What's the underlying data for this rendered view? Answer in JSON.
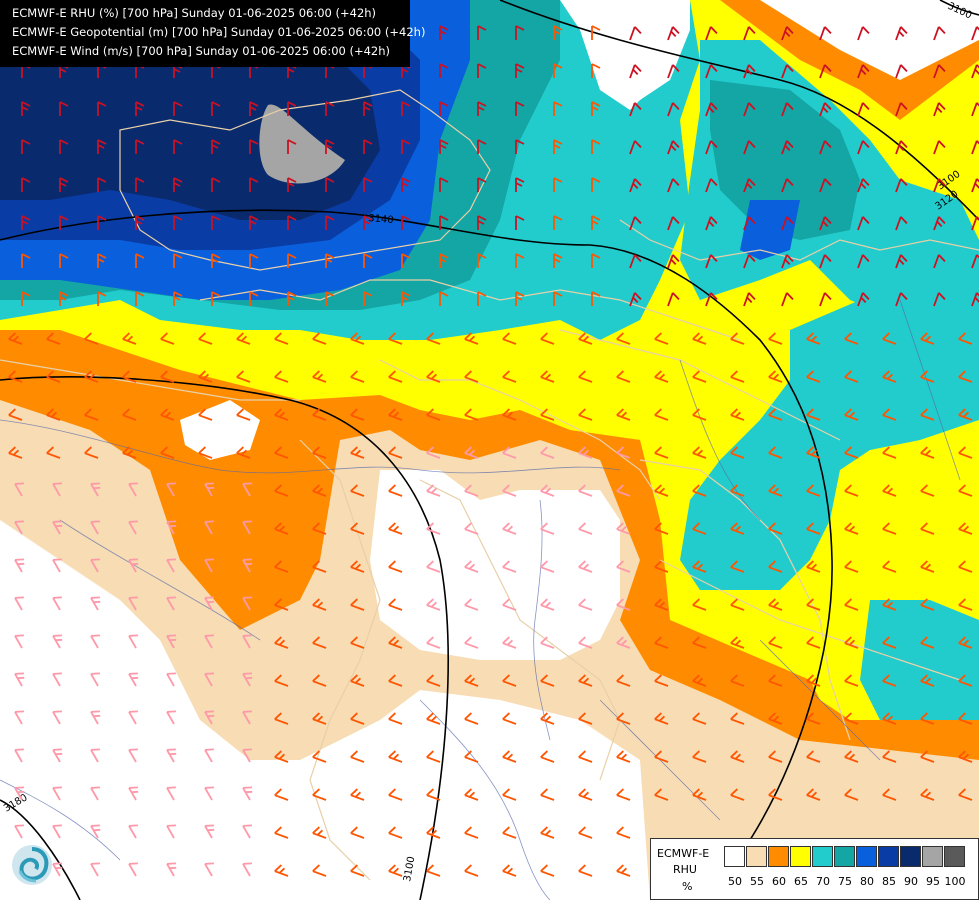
{
  "header": {
    "lines": [
      "ECMWF-E RHU (%) [700 hPa] Sunday 01-06-2025 06:00 (+42h)",
      "ECMWF-E Geopotential (m) [700 hPa] Sunday 01-06-2025 06:00 (+42h)",
      "ECMWF-E Wind (m/s) [700 hPa] Sunday 01-06-2025 06:00 (+42h)"
    ]
  },
  "contours": {
    "labels": [
      "3100",
      "3140",
      "3120",
      "3100",
      "3180",
      "3100"
    ]
  },
  "legend": {
    "model": "ECMWF-E",
    "variable": "RHU",
    "unit": "%",
    "colors": [
      "#ffffff",
      "#f7dcb4",
      "#ff8c00",
      "#ffff00",
      "#22cccc",
      "#14a5a5",
      "#0a5fdc",
      "#0a3ca5",
      "#0a2a6e",
      "#a5a5a5",
      "#5a5a5a"
    ],
    "ticks": [
      "50",
      "55",
      "60",
      "65",
      "70",
      "75",
      "80",
      "85",
      "90",
      "95",
      "100"
    ]
  },
  "colors": {
    "barb_strong": "#cc1122",
    "barb_medium": "#ff5500",
    "barb_light": "#ff99aa",
    "barb_white": "#ffffff",
    "border": "#e8d0a8",
    "river": "#5566aa",
    "contour": "#000000"
  },
  "icons": [
    "logo-swirl-icon",
    "wind-barb-icon"
  ]
}
